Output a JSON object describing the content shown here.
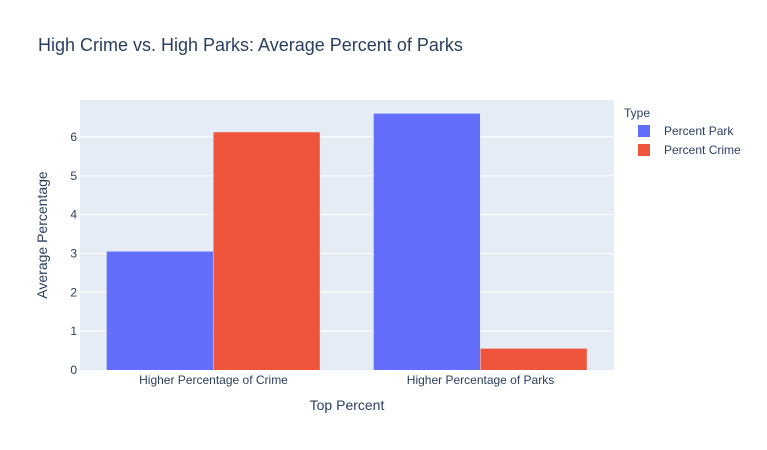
{
  "chart_data": {
    "type": "bar",
    "barmode": "group",
    "title": "High Crime vs. High Parks: Average Percent of Parks",
    "xlabel": "Top Percent",
    "ylabel": "Average Percentage",
    "categories": [
      "Higher Percentage of Crime",
      "Higher Percentage of Parks"
    ],
    "series": [
      {
        "name": "Percent Park",
        "color": "#636efa",
        "values": [
          3.05,
          6.6
        ]
      },
      {
        "name": "Percent Crime",
        "color": "#ef553b",
        "values": [
          6.12,
          0.55
        ]
      }
    ],
    "ylim": [
      0,
      6.95
    ],
    "yticks": [
      0,
      1,
      2,
      3,
      4,
      5,
      6
    ],
    "grid": true,
    "plot_background": "#e5ecf6",
    "legend": {
      "title": "Type",
      "placement": "right"
    }
  }
}
